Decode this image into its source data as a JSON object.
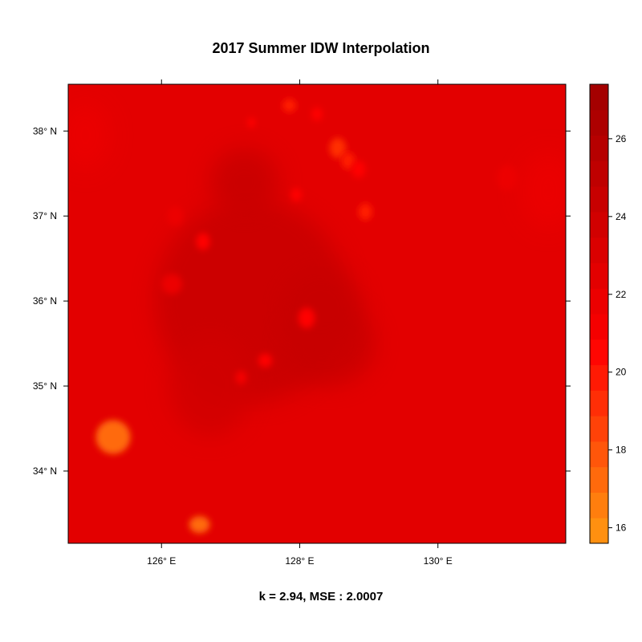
{
  "title": "2017 Summer IDW Interpolation",
  "subtitle": "k = 2.94, MSE : 2.0007",
  "chart_data": {
    "type": "heatmap",
    "x_axis": {
      "range": [
        124.65,
        131.85
      ],
      "ticks": [
        126,
        128,
        130
      ],
      "tick_labels": [
        "126° E",
        "128° E",
        "130° E"
      ]
    },
    "y_axis": {
      "range": [
        33.15,
        38.55
      ],
      "ticks": [
        34,
        35,
        36,
        37,
        38
      ],
      "tick_labels": [
        "34° N",
        "35° N",
        "36° N",
        "37° N",
        "38° N"
      ]
    },
    "colorbar": {
      "range": [
        15.6,
        27.4
      ],
      "ticks": [
        16,
        18,
        20,
        22,
        24,
        26
      ],
      "tick_labels": [
        "16",
        "18",
        "20",
        "22",
        "24",
        "26"
      ],
      "colors": [
        "#ff9010",
        "#ff7e0e",
        "#ff6a0c",
        "#ff560a",
        "#ff4208",
        "#ff2e06",
        "#ff1a04",
        "#ff0602",
        "#f50000",
        "#ec0000",
        "#e30000",
        "#da0000",
        "#d10000",
        "#c80000",
        "#bf0000",
        "#b60000",
        "#ad0000",
        "#a40000"
      ]
    },
    "background_value": 22.4,
    "features": [
      {
        "lon": 127.3,
        "lat": 36.0,
        "value": 24.2,
        "rx": 1.4,
        "ry": 1.2,
        "kind": "warm"
      },
      {
        "lon": 128.4,
        "lat": 35.5,
        "value": 24.6,
        "rx": 0.7,
        "ry": 0.5,
        "kind": "warm"
      },
      {
        "lon": 127.2,
        "lat": 37.4,
        "value": 24.2,
        "rx": 0.5,
        "ry": 0.4,
        "kind": "warm"
      },
      {
        "lon": 128.3,
        "lat": 35.9,
        "value": 24.2,
        "rx": 0.6,
        "ry": 0.5,
        "kind": "warm"
      },
      {
        "lon": 126.7,
        "lat": 35.0,
        "value": 24.0,
        "rx": 0.6,
        "ry": 0.6,
        "kind": "warm"
      },
      {
        "lon": 125.3,
        "lat": 34.4,
        "value": 17.0,
        "rx": 0.25,
        "ry": 0.2,
        "kind": "cool"
      },
      {
        "lon": 126.55,
        "lat": 33.37,
        "value": 17.5,
        "rx": 0.15,
        "ry": 0.1,
        "kind": "cool"
      },
      {
        "lon": 128.55,
        "lat": 37.8,
        "value": 19.5,
        "rx": 0.12,
        "ry": 0.12,
        "kind": "cool"
      },
      {
        "lon": 128.7,
        "lat": 37.65,
        "value": 20.0,
        "rx": 0.1,
        "ry": 0.1,
        "kind": "cool"
      },
      {
        "lon": 127.85,
        "lat": 38.3,
        "value": 20.0,
        "rx": 0.1,
        "ry": 0.08,
        "kind": "cool"
      },
      {
        "lon": 128.25,
        "lat": 38.2,
        "value": 20.5,
        "rx": 0.08,
        "ry": 0.08,
        "kind": "cool"
      },
      {
        "lon": 127.95,
        "lat": 37.25,
        "value": 20.5,
        "rx": 0.08,
        "ry": 0.08,
        "kind": "cool"
      },
      {
        "lon": 128.95,
        "lat": 37.05,
        "value": 20.0,
        "rx": 0.1,
        "ry": 0.1,
        "kind": "cool"
      },
      {
        "lon": 126.6,
        "lat": 36.7,
        "value": 20.5,
        "rx": 0.1,
        "ry": 0.1,
        "kind": "cool"
      },
      {
        "lon": 128.1,
        "lat": 35.8,
        "value": 20.5,
        "rx": 0.12,
        "ry": 0.12,
        "kind": "cool"
      },
      {
        "lon": 127.5,
        "lat": 35.3,
        "value": 20.5,
        "rx": 0.1,
        "ry": 0.08,
        "kind": "cool"
      },
      {
        "lon": 127.3,
        "lat": 38.1,
        "value": 20.5,
        "rx": 0.06,
        "ry": 0.06,
        "kind": "cool"
      },
      {
        "lon": 128.85,
        "lat": 37.55,
        "value": 20.5,
        "rx": 0.1,
        "ry": 0.1,
        "kind": "cool"
      },
      {
        "lon": 127.15,
        "lat": 35.1,
        "value": 21.0,
        "rx": 0.08,
        "ry": 0.08,
        "kind": "cool"
      },
      {
        "lon": 126.15,
        "lat": 36.2,
        "value": 21.5,
        "rx": 0.15,
        "ry": 0.12,
        "kind": "cool"
      },
      {
        "lon": 126.2,
        "lat": 37.0,
        "value": 21.5,
        "rx": 0.12,
        "ry": 0.12,
        "kind": "cool"
      },
      {
        "lon": 131.0,
        "lat": 37.45,
        "value": 21.5,
        "rx": 0.15,
        "ry": 0.15,
        "kind": "cool"
      },
      {
        "lon": 124.9,
        "lat": 37.95,
        "value": 22.0,
        "rx": 0.35,
        "ry": 0.4,
        "kind": "cool"
      },
      {
        "lon": 131.6,
        "lat": 37.3,
        "value": 22.0,
        "rx": 0.4,
        "ry": 0.45,
        "kind": "cool"
      }
    ]
  }
}
